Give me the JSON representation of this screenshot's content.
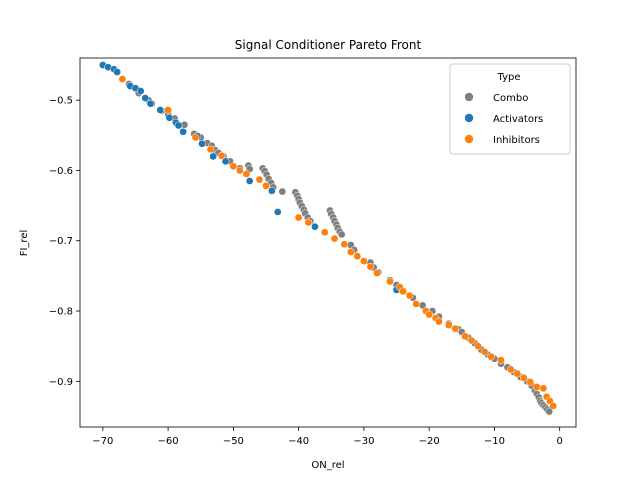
{
  "chart_data": {
    "type": "scatter",
    "title": "Signal Conditioner Pareto Front",
    "xlabel": "ON_rel",
    "ylabel": "FI_rel",
    "xlim": [
      -73.5,
      2.5
    ],
    "ylim": [
      -0.965,
      -0.44
    ],
    "xticks": [
      -70,
      -60,
      -50,
      -40,
      -30,
      -20,
      -10,
      0
    ],
    "yticks": [
      -0.5,
      -0.6,
      -0.7,
      -0.8,
      -0.9
    ],
    "xtick_labels": [
      "−70",
      "−60",
      "−50",
      "−40",
      "−30",
      "−20",
      "−10",
      "0"
    ],
    "ytick_labels": [
      "−0.5",
      "−0.6",
      "−0.7",
      "−0.8",
      "−0.9"
    ],
    "grid": false,
    "legend": {
      "title": "Type",
      "position": "top-right",
      "entries": [
        "Combo",
        "Activators",
        "Inhibitors"
      ]
    },
    "series": [
      {
        "name": "Combo",
        "color": "#7f7f7f",
        "points": [
          [
            -68,
            -0.458
          ],
          [
            -66,
            -0.477
          ],
          [
            -64.5,
            -0.49
          ],
          [
            -63,
            -0.5
          ],
          [
            -62.5,
            -0.505
          ],
          [
            -61,
            -0.515
          ],
          [
            -60,
            -0.52
          ],
          [
            -59,
            -0.526
          ],
          [
            -57.5,
            -0.535
          ],
          [
            -56,
            -0.548
          ],
          [
            -55,
            -0.553
          ],
          [
            -54,
            -0.561
          ],
          [
            -53.3,
            -0.565
          ],
          [
            -52.8,
            -0.571
          ],
          [
            -52.3,
            -0.575
          ],
          [
            -51.5,
            -0.58
          ],
          [
            -50.5,
            -0.587
          ],
          [
            -49,
            -0.597
          ],
          [
            -47.7,
            -0.593
          ],
          [
            -47.5,
            -0.598
          ],
          [
            -45.5,
            -0.597
          ],
          [
            -45.2,
            -0.601
          ],
          [
            -44.9,
            -0.606
          ],
          [
            -44.6,
            -0.612
          ],
          [
            -44.2,
            -0.618
          ],
          [
            -43.9,
            -0.624
          ],
          [
            -42.5,
            -0.63
          ],
          [
            -40.5,
            -0.631
          ],
          [
            -40.2,
            -0.636
          ],
          [
            -40,
            -0.641
          ],
          [
            -39.8,
            -0.646
          ],
          [
            -39.5,
            -0.651
          ],
          [
            -39.2,
            -0.656
          ],
          [
            -39,
            -0.661
          ],
          [
            -38.6,
            -0.667
          ],
          [
            -38.2,
            -0.672
          ],
          [
            -35.2,
            -0.657
          ],
          [
            -35,
            -0.662
          ],
          [
            -34.7,
            -0.667
          ],
          [
            -34.5,
            -0.672
          ],
          [
            -34.2,
            -0.677
          ],
          [
            -34,
            -0.682
          ],
          [
            -33.7,
            -0.687
          ],
          [
            -33.4,
            -0.691
          ],
          [
            -32,
            -0.706
          ],
          [
            -31.5,
            -0.713
          ],
          [
            -29,
            -0.731
          ],
          [
            -28.5,
            -0.738
          ],
          [
            -27.8,
            -0.745
          ],
          [
            -26,
            -0.756
          ],
          [
            -25,
            -0.763
          ],
          [
            -24,
            -0.771
          ],
          [
            -22.5,
            -0.781
          ],
          [
            -21,
            -0.792
          ],
          [
            -19.5,
            -0.8
          ],
          [
            -18.5,
            -0.808
          ],
          [
            -17,
            -0.818
          ],
          [
            -15.5,
            -0.826
          ],
          [
            -15,
            -0.83
          ],
          [
            -14,
            -0.838
          ],
          [
            -13,
            -0.846
          ],
          [
            -12,
            -0.855
          ],
          [
            -11,
            -0.862
          ],
          [
            -10.5,
            -0.866
          ],
          [
            -10,
            -0.868
          ],
          [
            -9,
            -0.875
          ],
          [
            -8,
            -0.88
          ],
          [
            -7,
            -0.887
          ],
          [
            -6,
            -0.894
          ],
          [
            -5,
            -0.9
          ],
          [
            -4.3,
            -0.906
          ],
          [
            -3.8,
            -0.913
          ],
          [
            -3.5,
            -0.918
          ],
          [
            -3.2,
            -0.923
          ],
          [
            -3,
            -0.928
          ],
          [
            -2.8,
            -0.931
          ],
          [
            -2.5,
            -0.934
          ],
          [
            -2.2,
            -0.937
          ],
          [
            -1.9,
            -0.94
          ],
          [
            -1.6,
            -0.943
          ]
        ]
      },
      {
        "name": "Activators",
        "color": "#1f77b4",
        "points": [
          [
            -70,
            -0.45
          ],
          [
            -69.2,
            -0.453
          ],
          [
            -68.3,
            -0.456
          ],
          [
            -67.8,
            -0.46
          ],
          [
            -65.8,
            -0.48
          ],
          [
            -65,
            -0.483
          ],
          [
            -64.2,
            -0.487
          ],
          [
            -63.5,
            -0.497
          ],
          [
            -62.7,
            -0.505
          ],
          [
            -61.2,
            -0.514
          ],
          [
            -59.8,
            -0.525
          ],
          [
            -58.8,
            -0.532
          ],
          [
            -58.4,
            -0.536
          ],
          [
            -57.7,
            -0.545
          ],
          [
            -55.5,
            -0.551
          ],
          [
            -54.8,
            -0.562
          ],
          [
            -53.1,
            -0.58
          ],
          [
            -51.2,
            -0.587
          ],
          [
            -47.5,
            -0.615
          ],
          [
            -44.1,
            -0.629
          ],
          [
            -43.2,
            -0.659
          ],
          [
            -37.5,
            -0.68
          ],
          [
            -25,
            -0.77
          ]
        ]
      },
      {
        "name": "Inhibitors",
        "color": "#ff7f0e",
        "points": [
          [
            -67,
            -0.47
          ],
          [
            -60,
            -0.514
          ],
          [
            -55.8,
            -0.553
          ],
          [
            -53.5,
            -0.57
          ],
          [
            -51.8,
            -0.579
          ],
          [
            -50,
            -0.594
          ],
          [
            -49,
            -0.6
          ],
          [
            -48,
            -0.605
          ],
          [
            -46,
            -0.613
          ],
          [
            -45,
            -0.622
          ],
          [
            -40,
            -0.667
          ],
          [
            -38.5,
            -0.674
          ],
          [
            -36,
            -0.688
          ],
          [
            -34.5,
            -0.697
          ],
          [
            -33,
            -0.705
          ],
          [
            -32,
            -0.716
          ],
          [
            -31,
            -0.722
          ],
          [
            -30,
            -0.729
          ],
          [
            -29,
            -0.737
          ],
          [
            -28,
            -0.746
          ],
          [
            -26,
            -0.758
          ],
          [
            -24.5,
            -0.766
          ],
          [
            -24,
            -0.772
          ],
          [
            -23,
            -0.778
          ],
          [
            -22,
            -0.79
          ],
          [
            -20.5,
            -0.8
          ],
          [
            -20,
            -0.805
          ],
          [
            -19,
            -0.81
          ],
          [
            -18.5,
            -0.815
          ],
          [
            -17,
            -0.82
          ],
          [
            -16,
            -0.825
          ],
          [
            -14.5,
            -0.836
          ],
          [
            -13.5,
            -0.842
          ],
          [
            -12.5,
            -0.85
          ],
          [
            -11.5,
            -0.858
          ],
          [
            -10.5,
            -0.865
          ],
          [
            -9,
            -0.87
          ],
          [
            -7.5,
            -0.883
          ],
          [
            -6.5,
            -0.889
          ],
          [
            -5.5,
            -0.895
          ],
          [
            -4.5,
            -0.901
          ],
          [
            -3.5,
            -0.908
          ],
          [
            -2.5,
            -0.91
          ],
          [
            -2,
            -0.922
          ],
          [
            -1.5,
            -0.928
          ],
          [
            -1,
            -0.935
          ]
        ]
      }
    ]
  }
}
